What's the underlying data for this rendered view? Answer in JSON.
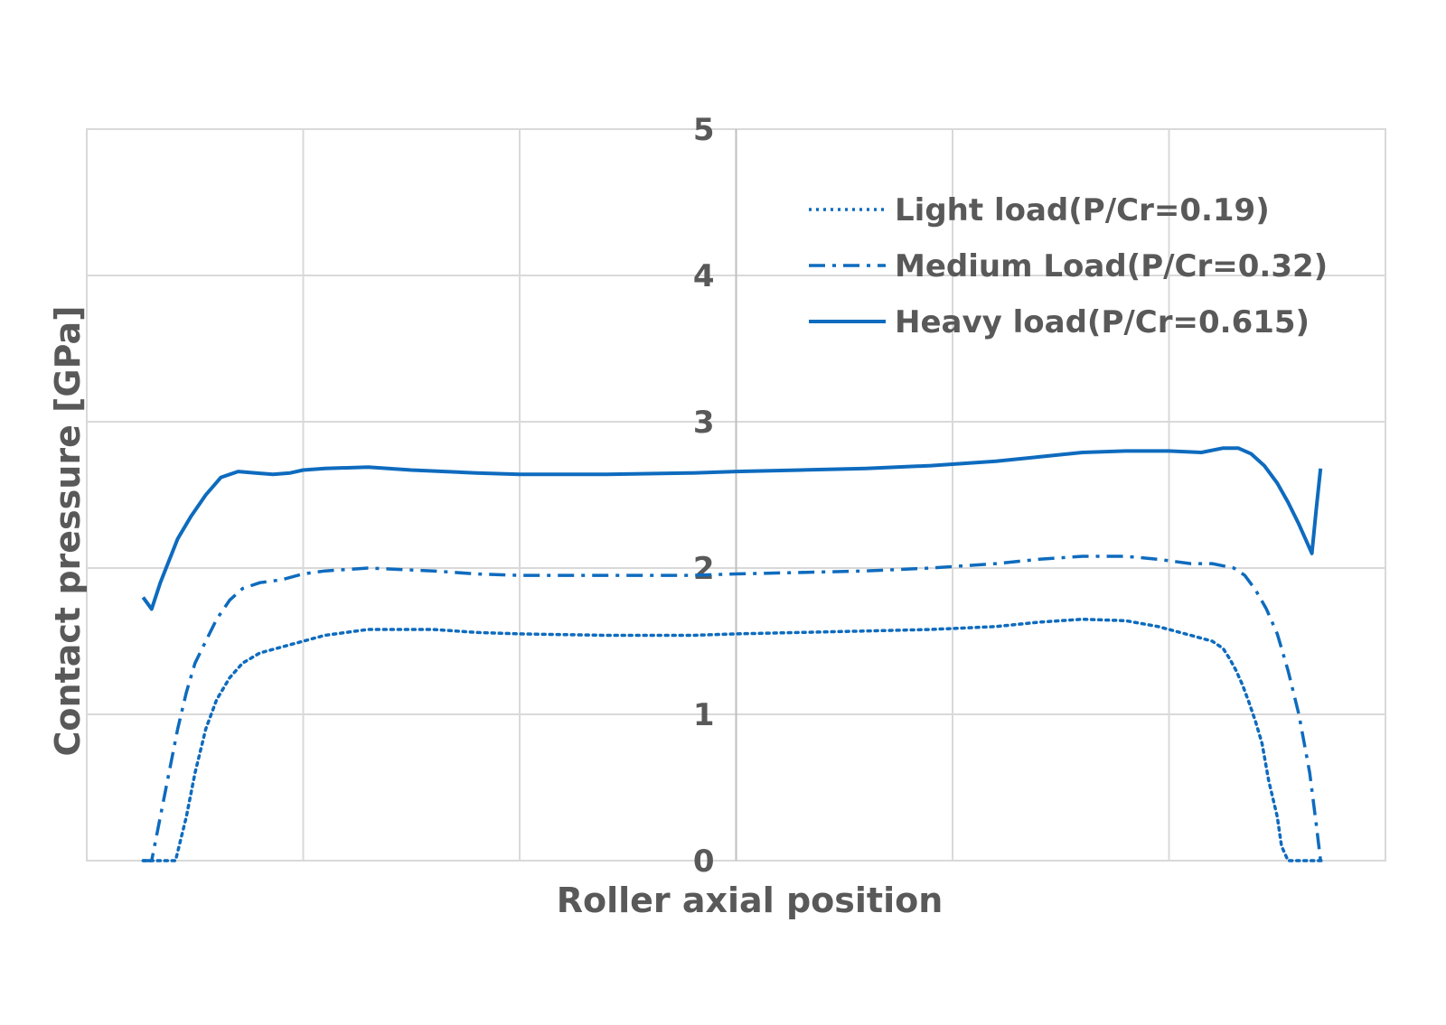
{
  "chart_data": {
    "type": "line",
    "title": "",
    "xlabel": "Roller axial position",
    "ylabel": "Contact pressure [GPa]",
    "ylim": [
      0,
      5
    ],
    "xlim": [
      0,
      6
    ],
    "yticks": [
      "0",
      "1",
      "2",
      "3",
      "4",
      "5"
    ],
    "grid": true,
    "legend_position": "top-right",
    "series": [
      {
        "name": "Light load(P/Cr=0.19)",
        "style": "dotted",
        "color": "#0E6BBE",
        "x": [
          0.26,
          0.32,
          0.41,
          0.46,
          0.5,
          0.55,
          0.6,
          0.66,
          0.72,
          0.8,
          0.9,
          1.0,
          1.1,
          1.3,
          1.6,
          1.8,
          2.0,
          2.4,
          2.8,
          3.0,
          3.3,
          3.6,
          3.9,
          4.2,
          4.4,
          4.6,
          4.8,
          4.95,
          5.1,
          5.2,
          5.25,
          5.28,
          5.31,
          5.34,
          5.37,
          5.4,
          5.43,
          5.46,
          5.5,
          5.52,
          5.55,
          5.6,
          5.66,
          5.71
        ],
        "y": [
          0.0,
          0.0,
          0.0,
          0.3,
          0.6,
          0.9,
          1.1,
          1.25,
          1.35,
          1.42,
          1.46,
          1.5,
          1.54,
          1.58,
          1.58,
          1.56,
          1.55,
          1.54,
          1.54,
          1.55,
          1.56,
          1.57,
          1.58,
          1.6,
          1.63,
          1.65,
          1.64,
          1.6,
          1.54,
          1.5,
          1.45,
          1.38,
          1.3,
          1.2,
          1.08,
          0.95,
          0.8,
          0.55,
          0.3,
          0.1,
          0.0,
          0.0,
          0.0,
          0.0
        ]
      },
      {
        "name": "Medium Load(P/Cr=0.32)",
        "style": "dash-dot",
        "color": "#0E6BBE",
        "x": [
          0.26,
          0.3,
          0.34,
          0.38,
          0.42,
          0.46,
          0.5,
          0.55,
          0.6,
          0.66,
          0.72,
          0.8,
          0.9,
          1.0,
          1.1,
          1.3,
          1.6,
          1.8,
          2.0,
          2.4,
          2.8,
          3.0,
          3.3,
          3.6,
          3.9,
          4.2,
          4.4,
          4.6,
          4.8,
          4.95,
          5.1,
          5.2,
          5.3,
          5.35,
          5.4,
          5.45,
          5.5,
          5.55,
          5.6,
          5.65,
          5.68,
          5.7
        ],
        "y": [
          0.0,
          0.0,
          0.3,
          0.6,
          0.9,
          1.15,
          1.35,
          1.5,
          1.65,
          1.78,
          1.86,
          1.9,
          1.92,
          1.96,
          1.98,
          2.0,
          1.98,
          1.96,
          1.95,
          1.95,
          1.95,
          1.96,
          1.97,
          1.98,
          2.0,
          2.03,
          2.06,
          2.08,
          2.08,
          2.06,
          2.03,
          2.03,
          2.0,
          1.95,
          1.85,
          1.72,
          1.55,
          1.3,
          1.0,
          0.6,
          0.25,
          0.0
        ]
      },
      {
        "name": "Heavy load(P/Cr=0.615)",
        "style": "solid",
        "color": "#0E6BBE",
        "x": [
          0.26,
          0.3,
          0.34,
          0.38,
          0.42,
          0.48,
          0.55,
          0.62,
          0.7,
          0.78,
          0.86,
          0.94,
          1.0,
          1.1,
          1.3,
          1.5,
          1.8,
          2.0,
          2.4,
          2.8,
          3.0,
          3.3,
          3.6,
          3.9,
          4.2,
          4.4,
          4.6,
          4.8,
          5.0,
          5.15,
          5.25,
          5.32,
          5.38,
          5.44,
          5.5,
          5.55,
          5.6,
          5.63,
          5.66,
          5.68,
          5.7
        ],
        "y": [
          1.8,
          1.72,
          1.9,
          2.05,
          2.2,
          2.35,
          2.5,
          2.62,
          2.66,
          2.65,
          2.64,
          2.65,
          2.67,
          2.68,
          2.69,
          2.67,
          2.65,
          2.64,
          2.64,
          2.65,
          2.66,
          2.67,
          2.68,
          2.7,
          2.73,
          2.76,
          2.79,
          2.8,
          2.8,
          2.79,
          2.82,
          2.82,
          2.78,
          2.7,
          2.58,
          2.45,
          2.3,
          2.2,
          2.1,
          2.4,
          2.68
        ]
      }
    ]
  }
}
